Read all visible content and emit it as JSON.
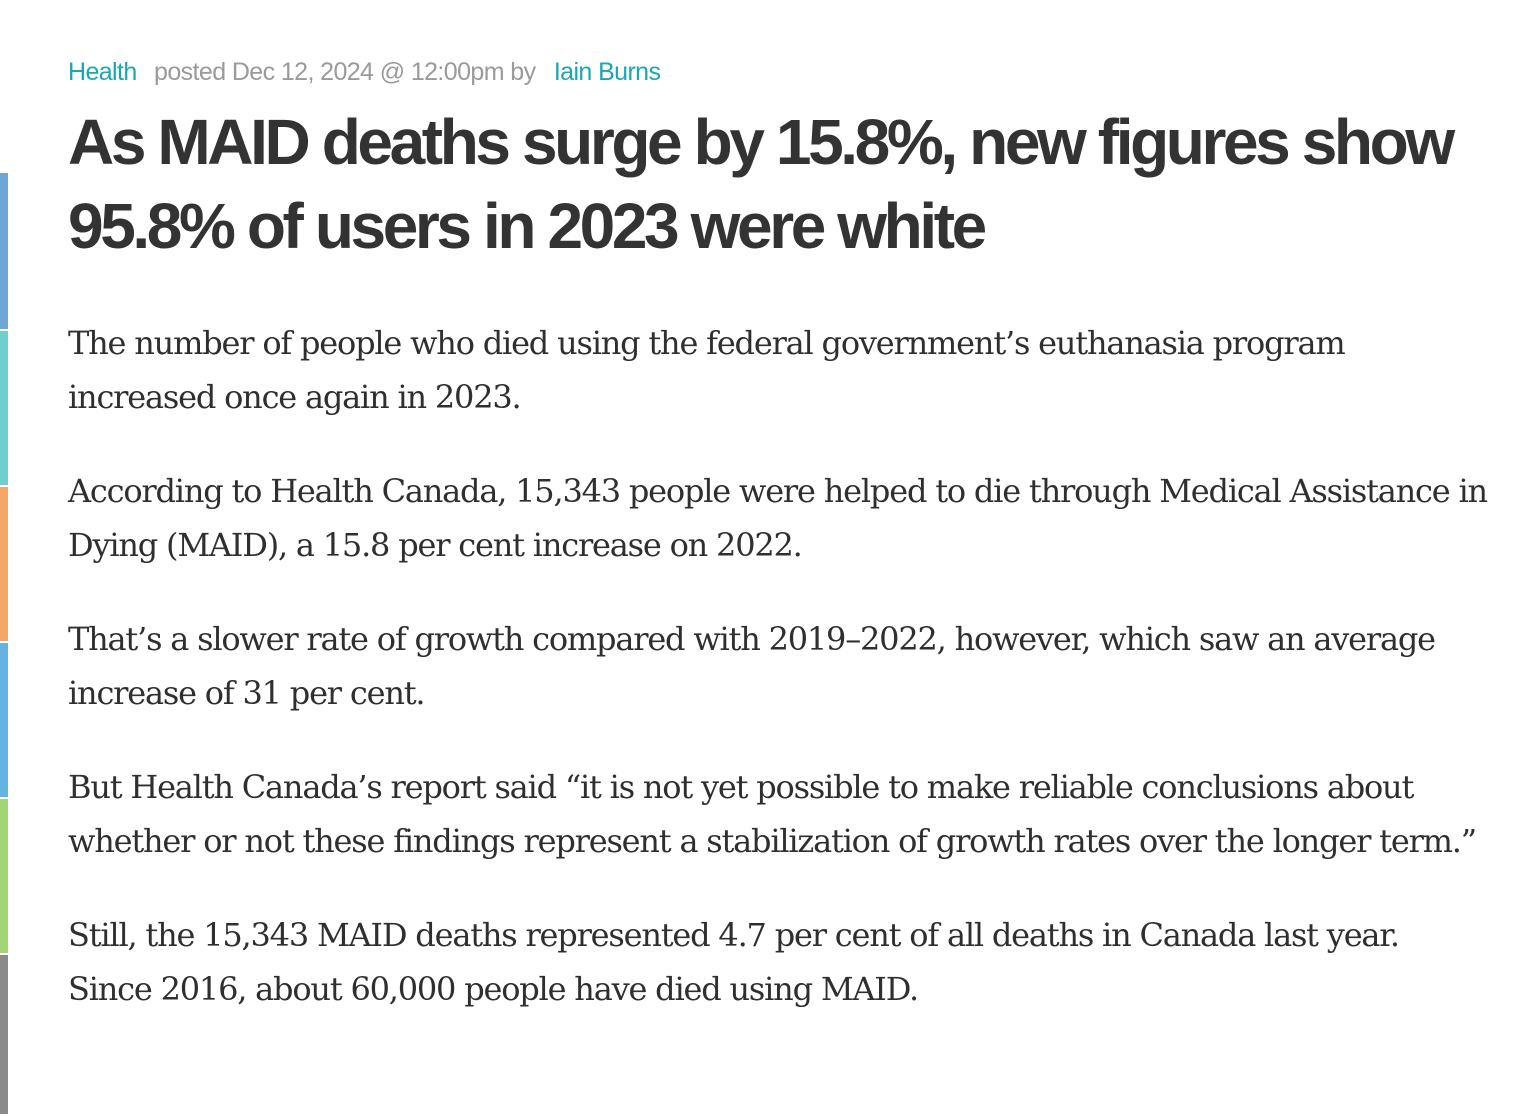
{
  "theme": {
    "link_color": "#1aa7b4",
    "meta_gray": "#9a9a9a",
    "text_color": "#333333",
    "side_strip_colors": [
      "#6fa6d6",
      "#6fcfcf",
      "#f3a86a",
      "#66b2e0",
      "#a3d576",
      "#8a8a8a"
    ]
  },
  "meta": {
    "category": "Health",
    "posted": "posted Dec 12, 2024 @ 12:00pm by",
    "author": "Iain Burns"
  },
  "headline": "As MAID deaths surge by 15.8%, new figures show 95.8% of users in 2023 were white",
  "paragraphs": [
    "The number of people who died using the federal government’s euthanasia program increased once again in 2023.",
    "According to Health Canada, 15,343 people were helped to die through Medical Assistance in Dying (MAID), a 15.8 per cent increase on 2022.",
    "That’s a slower rate of growth compared with 2019–2022, however, which saw an average increase of 31 per cent.",
    "But Health Canada’s report said “it is not yet possible to make reliable conclusions about whether or not these findings represent a stabilization of growth rates over the longer term.”",
    "Still, the 15,343 MAID deaths represented 4.7 per cent of all deaths in Canada last year. Since 2016, about 60,000 people have died using MAID."
  ]
}
